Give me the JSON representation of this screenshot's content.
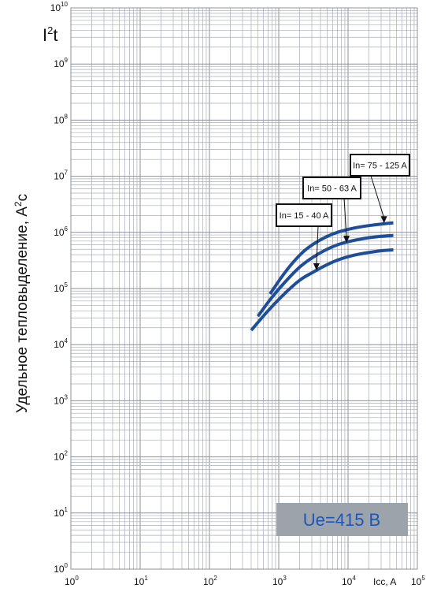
{
  "chart_data": {
    "type": "line",
    "title": "",
    "xlabel": "Icc, A",
    "ylabel": "Удельное тепловыделение, А²с",
    "ylabel_main": "Удельное тепловыделение, А",
    "ylabel_sup": "2",
    "ylabel_tail": "с",
    "corner_label_base": "I",
    "corner_label_sup": "2",
    "corner_label_tail": "t",
    "x_scale": "log",
    "y_scale": "log",
    "xlim": [
      1,
      100000
    ],
    "ylim": [
      1,
      10000000000
    ],
    "x_ticks": [
      {
        "base": "10",
        "exp": "0"
      },
      {
        "base": "10",
        "exp": "1"
      },
      {
        "base": "10",
        "exp": "2"
      },
      {
        "base": "10",
        "exp": "3"
      },
      {
        "base": "10",
        "exp": "4"
      },
      {
        "base": "10",
        "exp": "5"
      }
    ],
    "y_ticks": [
      {
        "base": "10",
        "exp": "0"
      },
      {
        "base": "10",
        "exp": "1"
      },
      {
        "base": "10",
        "exp": "2"
      },
      {
        "base": "10",
        "exp": "3"
      },
      {
        "base": "10",
        "exp": "4"
      },
      {
        "base": "10",
        "exp": "5"
      },
      {
        "base": "10",
        "exp": "6"
      },
      {
        "base": "10",
        "exp": "7"
      },
      {
        "base": "10",
        "exp": "8"
      },
      {
        "base": "10",
        "exp": "9"
      },
      {
        "base": "10",
        "exp": "10"
      }
    ],
    "grid": true,
    "series": [
      {
        "name": "In= 15 - 40 A",
        "x": [
          400,
          700,
          1200,
          2000,
          3000,
          4500,
          7000,
          11000,
          18000,
          30000,
          45000
        ],
        "y": [
          18000,
          40000,
          80000,
          140000,
          190000,
          250000,
          320000,
          380000,
          430000,
          470000,
          490000
        ]
      },
      {
        "name": "In= 50 - 63 A",
        "x": [
          500,
          800,
          1300,
          2000,
          3000,
          4500,
          7000,
          11000,
          18000,
          30000,
          45000
        ],
        "y": [
          32000,
          70000,
          140000,
          240000,
          350000,
          470000,
          600000,
          700000,
          790000,
          850000,
          880000
        ]
      },
      {
        "name": "In= 75 - 125 A",
        "x": [
          750,
          1100,
          1600,
          2300,
          3300,
          5000,
          7500,
          12000,
          20000,
          32000,
          45000
        ],
        "y": [
          80000,
          160000,
          290000,
          460000,
          640000,
          850000,
          1030000,
          1190000,
          1320000,
          1420000,
          1480000
        ]
      }
    ],
    "annotations": [
      {
        "text": "In= 15 - 40 A",
        "arrow_to": [
          3500,
          210000
        ]
      },
      {
        "text": "In= 50 - 63 A",
        "arrow_to": [
          9500,
          650000
        ]
      },
      {
        "text": "In= 75 - 125 A",
        "arrow_to": [
          33000,
          1450000
        ]
      }
    ],
    "badge": {
      "text": "Ue=415 В",
      "background": "#9da3ab",
      "color": "#1e56b8"
    },
    "colors": {
      "series": "#1f4e99",
      "grid": "#a9aeb5",
      "grid_major": "#8d9198",
      "frame": "#8d9198"
    }
  }
}
